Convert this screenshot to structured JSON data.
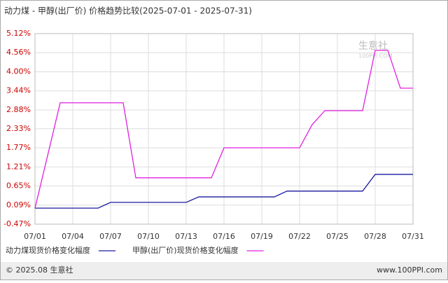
{
  "chart_data": {
    "type": "line",
    "title": "动力煤 - 甲醇(出厂价) 价格趋势比较(2025-07-01 - 2025-07-31)",
    "categories": [
      "07/01",
      null,
      null,
      "07/04",
      null,
      null,
      "07/07",
      null,
      null,
      "07/10",
      null,
      null,
      "07/13",
      null,
      null,
      "07/16",
      null,
      null,
      "07/19",
      null,
      null,
      "07/22",
      null,
      null,
      "07/25",
      null,
      null,
      "07/28",
      null,
      null,
      "07/31"
    ],
    "series": [
      {
        "name": "动力煤现货价格变化幅度",
        "color": "#1a1aa0",
        "values": [
          0,
          0,
          0,
          0,
          0,
          0,
          0.17,
          0.17,
          0.17,
          0.17,
          0.17,
          0.17,
          0.17,
          0.33,
          0.33,
          0.33,
          0.33,
          0.33,
          0.33,
          0.33,
          0.5,
          0.5,
          0.5,
          0.5,
          0.5,
          0.5,
          0.5,
          0.99,
          0.99,
          0.99,
          0.99
        ]
      },
      {
        "name": "甲醇(出厂价)现货价格变化幅度",
        "color": "#e020e0",
        "values": [
          0,
          1.54,
          3.09,
          3.09,
          3.09,
          3.09,
          3.09,
          3.09,
          0.89,
          0.89,
          0.89,
          0.89,
          0.89,
          0.89,
          0.89,
          1.77,
          1.77,
          1.77,
          1.77,
          1.77,
          1.77,
          1.77,
          2.45,
          2.86,
          2.86,
          2.86,
          2.86,
          4.63,
          4.63,
          3.52,
          3.52
        ]
      }
    ],
    "ylim": [
      -0.47,
      5.12
    ],
    "yticks": [
      {
        "value": 5.12,
        "label": "5.12%"
      },
      {
        "value": 4.56,
        "label": "4.56%"
      },
      {
        "value": 4.0,
        "label": "4.00%"
      },
      {
        "value": 3.44,
        "label": "3.44%"
      },
      {
        "value": 2.88,
        "label": "2.88%"
      },
      {
        "value": 2.33,
        "label": "2.33%"
      },
      {
        "value": 1.77,
        "label": "1.77%"
      },
      {
        "value": 1.21,
        "label": "1.21%"
      },
      {
        "value": 0.65,
        "label": "0.65%"
      },
      {
        "value": 0.09,
        "label": "0.09%"
      },
      {
        "value": -0.47,
        "label": "-0.47%"
      }
    ],
    "grid": true,
    "watermark": "生意社",
    "watermark_sub": "100PPI.COM",
    "footer_left": "© 2025.08 生意社",
    "footer_right": "www.100PPI.com"
  }
}
